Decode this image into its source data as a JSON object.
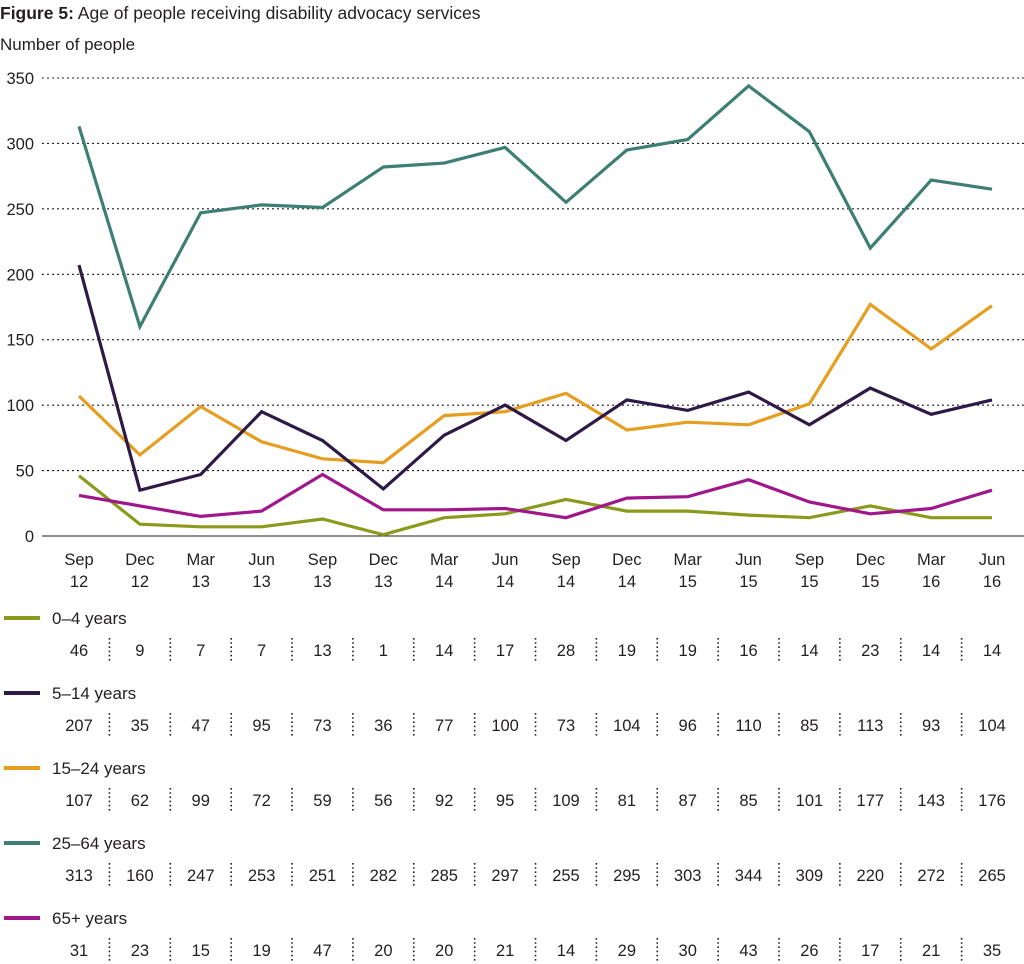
{
  "figure": {
    "title_prefix": "Figure 5:",
    "title_text": " Age of people receiving disability advocacy services"
  },
  "chart_data": {
    "type": "line",
    "title": "Figure 5: Age of people receiving disability advocacy services",
    "ylabel": "Number of people",
    "xlabel": "",
    "ylim": [
      0,
      350
    ],
    "yticks": [
      0,
      50,
      100,
      150,
      200,
      250,
      300,
      350
    ],
    "grid": "horizontal dotted",
    "categories": [
      [
        "Sep",
        "12"
      ],
      [
        "Dec",
        "12"
      ],
      [
        "Mar",
        "13"
      ],
      [
        "Jun",
        "13"
      ],
      [
        "Sep",
        "13"
      ],
      [
        "Dec",
        "13"
      ],
      [
        "Mar",
        "14"
      ],
      [
        "Jun",
        "14"
      ],
      [
        "Sep",
        "14"
      ],
      [
        "Dec",
        "14"
      ],
      [
        "Mar",
        "15"
      ],
      [
        "Jun",
        "15"
      ],
      [
        "Sep",
        "15"
      ],
      [
        "Dec",
        "15"
      ],
      [
        "Mar",
        "16"
      ],
      [
        "Jun",
        "16"
      ]
    ],
    "series": [
      {
        "name": "0–4 years",
        "color": "#8a9a1c",
        "values": [
          46,
          9,
          7,
          7,
          13,
          1,
          14,
          17,
          28,
          19,
          19,
          16,
          14,
          23,
          14,
          14
        ]
      },
      {
        "name": "5–14 years",
        "color": "#2e1a47",
        "values": [
          207,
          35,
          47,
          95,
          73,
          36,
          77,
          100,
          73,
          104,
          96,
          110,
          85,
          113,
          93,
          104
        ]
      },
      {
        "name": "15–24 years",
        "color": "#e59e1f",
        "values": [
          107,
          62,
          99,
          72,
          59,
          56,
          92,
          95,
          109,
          81,
          87,
          85,
          101,
          177,
          143,
          176
        ]
      },
      {
        "name": "25–64 years",
        "color": "#3d7f73",
        "values": [
          313,
          160,
          247,
          253,
          251,
          282,
          285,
          297,
          255,
          295,
          303,
          344,
          309,
          220,
          272,
          265
        ]
      },
      {
        "name": "65+ years",
        "color": "#a0168b",
        "values": [
          31,
          23,
          15,
          19,
          47,
          20,
          20,
          21,
          14,
          29,
          30,
          43,
          26,
          17,
          21,
          35
        ]
      }
    ]
  }
}
